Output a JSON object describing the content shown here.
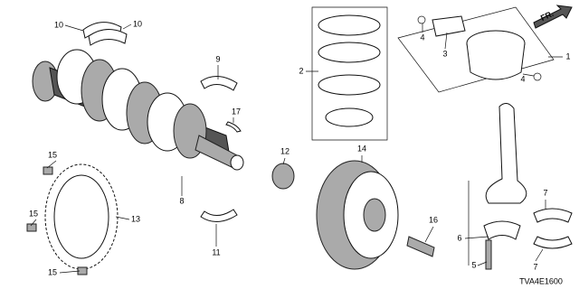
{
  "callouts": [
    "10",
    "10",
    "9",
    "17",
    "8",
    "15",
    "15",
    "15",
    "13",
    "11",
    "12",
    "2",
    "14",
    "16",
    "4",
    "3",
    "4",
    "1",
    "6",
    "5",
    "7",
    "7"
  ],
  "direction_label": "FR.",
  "diagram_code": "TVA4E1600"
}
